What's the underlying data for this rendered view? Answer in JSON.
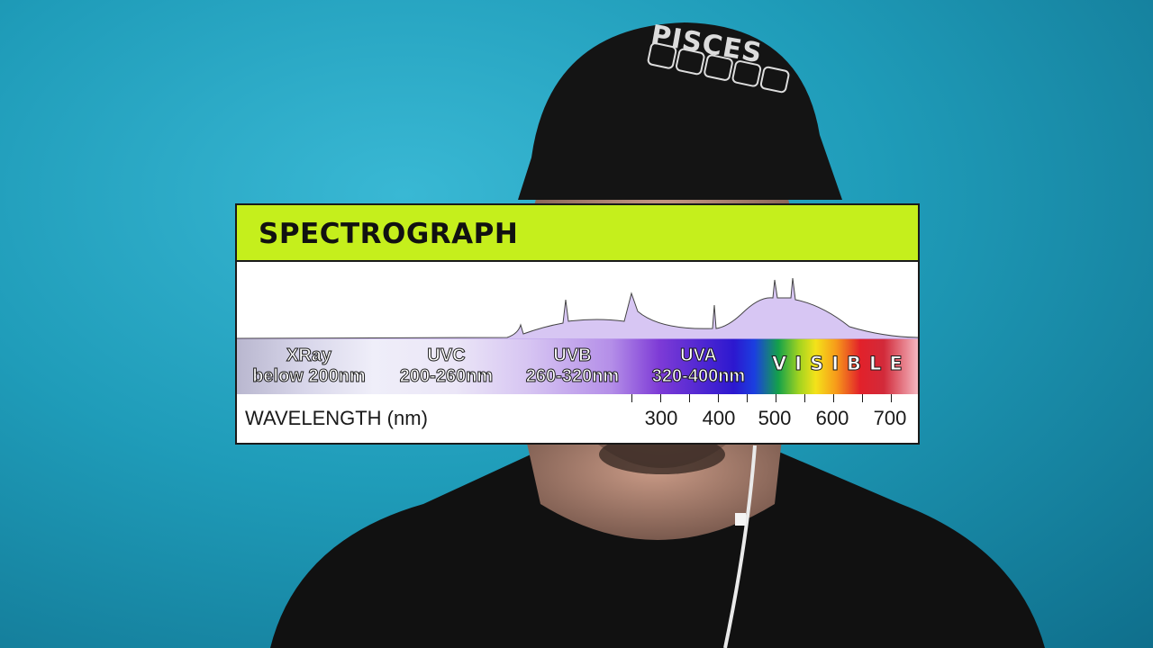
{
  "overlay": {
    "title": "SPECTROGRAPH",
    "bands": [
      {
        "name": "XRay",
        "range": "below 200nm"
      },
      {
        "name": "UVC",
        "range": "200-260nm"
      },
      {
        "name": "UVB",
        "range": "260-320nm"
      },
      {
        "name": "UVA",
        "range": "320-400nm"
      }
    ],
    "visible_label": "VISIBLE",
    "axis": {
      "title": "WAVELENGTH (nm)",
      "ticks": [
        "300",
        "400",
        "500",
        "600",
        "700"
      ]
    }
  },
  "cap_text": "PISCES",
  "colors": {
    "background": "#1f9cb9",
    "header": "#c5ef1c",
    "shirt": "#111111",
    "cap": "#141414"
  }
}
